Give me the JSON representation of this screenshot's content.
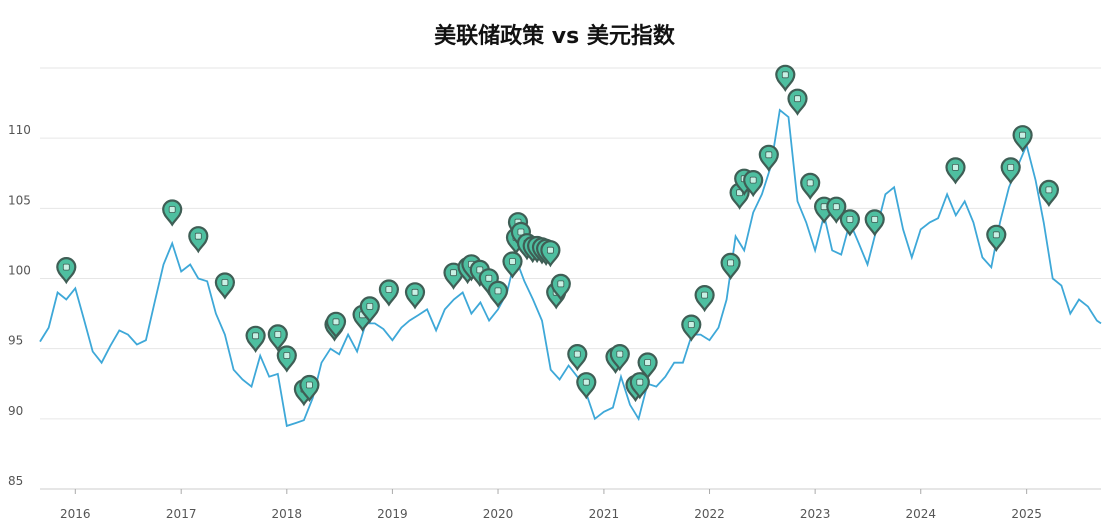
{
  "chart_data": {
    "type": "line",
    "title": "美联储政策 vs 美元指数",
    "xlabel": "",
    "ylabel": "",
    "x_range": [
      "2015-09-01",
      "2025-09-15"
    ],
    "ylim": [
      85,
      115
    ],
    "y_ticks": [
      "85",
      "90",
      "95",
      "100",
      "105",
      "110"
    ],
    "x_ticks": [
      "2016",
      "2017",
      "2018",
      "2019",
      "2020",
      "2021",
      "2022",
      "2023",
      "2024",
      "2025"
    ],
    "grid": "horizontal",
    "colors": {
      "line": "#3ea8d8",
      "marker_fill": "#4ebfa0",
      "marker_stroke": "#3f5e55",
      "marker_dot": "#c8f0e4"
    },
    "series": [
      {
        "values": [
          [
            "2015-09-01",
            95.5
          ],
          [
            "2015-10-01",
            96.5
          ],
          [
            "2015-11-01",
            99.0
          ],
          [
            "2015-12-01",
            98.5
          ],
          [
            "2016-01-01",
            99.3
          ],
          [
            "2016-02-01",
            97.0
          ],
          [
            "2016-03-01",
            94.8
          ],
          [
            "2016-04-01",
            94.0
          ],
          [
            "2016-05-01",
            95.2
          ],
          [
            "2016-06-01",
            96.3
          ],
          [
            "2016-07-01",
            96.0
          ],
          [
            "2016-08-01",
            95.3
          ],
          [
            "2016-09-01",
            95.6
          ],
          [
            "2016-10-01",
            98.3
          ],
          [
            "2016-11-01",
            101.0
          ],
          [
            "2016-12-01",
            102.5
          ],
          [
            "2017-01-01",
            100.5
          ],
          [
            "2017-02-01",
            101.0
          ],
          [
            "2017-03-01",
            100.0
          ],
          [
            "2017-04-01",
            99.8
          ],
          [
            "2017-05-01",
            97.5
          ],
          [
            "2017-06-01",
            96.0
          ],
          [
            "2017-07-01",
            93.5
          ],
          [
            "2017-08-01",
            92.8
          ],
          [
            "2017-09-01",
            92.3
          ],
          [
            "2017-10-01",
            94.5
          ],
          [
            "2017-11-01",
            93.0
          ],
          [
            "2017-12-01",
            93.2
          ],
          [
            "2018-01-01",
            89.5
          ],
          [
            "2018-02-01",
            89.7
          ],
          [
            "2018-03-01",
            89.9
          ],
          [
            "2018-04-01",
            91.5
          ],
          [
            "2018-05-01",
            94.0
          ],
          [
            "2018-06-01",
            95.0
          ],
          [
            "2018-07-01",
            94.6
          ],
          [
            "2018-08-01",
            96.0
          ],
          [
            "2018-09-01",
            94.8
          ],
          [
            "2018-10-01",
            96.8
          ],
          [
            "2018-11-01",
            96.8
          ],
          [
            "2018-12-01",
            96.4
          ],
          [
            "2019-01-01",
            95.6
          ],
          [
            "2019-02-01",
            96.5
          ],
          [
            "2019-03-01",
            97.0
          ],
          [
            "2019-04-01",
            97.4
          ],
          [
            "2019-05-01",
            97.8
          ],
          [
            "2019-06-01",
            96.3
          ],
          [
            "2019-07-01",
            97.8
          ],
          [
            "2019-08-01",
            98.5
          ],
          [
            "2019-09-01",
            99.0
          ],
          [
            "2019-10-01",
            97.5
          ],
          [
            "2019-11-01",
            98.3
          ],
          [
            "2019-12-01",
            97.0
          ],
          [
            "2020-01-01",
            97.8
          ],
          [
            "2020-02-01",
            99.0
          ],
          [
            "2020-03-01",
            101.5
          ],
          [
            "2020-04-01",
            99.8
          ],
          [
            "2020-05-01",
            98.5
          ],
          [
            "2020-06-01",
            97.0
          ],
          [
            "2020-07-01",
            93.5
          ],
          [
            "2020-08-01",
            92.8
          ],
          [
            "2020-09-01",
            93.8
          ],
          [
            "2020-10-01",
            93.0
          ],
          [
            "2020-11-01",
            91.8
          ],
          [
            "2020-12-01",
            90.0
          ],
          [
            "2021-01-01",
            90.5
          ],
          [
            "2021-02-01",
            90.8
          ],
          [
            "2021-03-01",
            93.0
          ],
          [
            "2021-04-01",
            91.0
          ],
          [
            "2021-05-01",
            90.0
          ],
          [
            "2021-06-01",
            92.5
          ],
          [
            "2021-07-01",
            92.3
          ],
          [
            "2021-08-01",
            93.0
          ],
          [
            "2021-09-01",
            94.0
          ],
          [
            "2021-10-01",
            94.0
          ],
          [
            "2021-11-01",
            96.0
          ],
          [
            "2021-12-01",
            96.0
          ],
          [
            "2022-01-01",
            95.6
          ],
          [
            "2022-02-01",
            96.5
          ],
          [
            "2022-03-01",
            98.5
          ],
          [
            "2022-04-01",
            103.0
          ],
          [
            "2022-05-01",
            102.0
          ],
          [
            "2022-06-01",
            104.7
          ],
          [
            "2022-07-01",
            106.0
          ],
          [
            "2022-08-01",
            108.0
          ],
          [
            "2022-09-01",
            112.0
          ],
          [
            "2022-10-01",
            111.5
          ],
          [
            "2022-11-01",
            105.5
          ],
          [
            "2022-12-01",
            104.0
          ],
          [
            "2023-01-01",
            102.0
          ],
          [
            "2023-02-01",
            104.5
          ],
          [
            "2023-03-01",
            102.0
          ],
          [
            "2023-04-01",
            101.7
          ],
          [
            "2023-05-01",
            104.0
          ],
          [
            "2023-06-01",
            102.5
          ],
          [
            "2023-07-01",
            101.0
          ],
          [
            "2023-08-01",
            103.5
          ],
          [
            "2023-09-01",
            106.0
          ],
          [
            "2023-10-01",
            106.5
          ],
          [
            "2023-11-01",
            103.5
          ],
          [
            "2023-12-01",
            101.5
          ],
          [
            "2024-01-01",
            103.5
          ],
          [
            "2024-02-01",
            104.0
          ],
          [
            "2024-03-01",
            104.3
          ],
          [
            "2024-04-01",
            106.0
          ],
          [
            "2024-05-01",
            104.5
          ],
          [
            "2024-06-01",
            105.5
          ],
          [
            "2024-07-01",
            104.0
          ],
          [
            "2024-08-01",
            101.5
          ],
          [
            "2024-09-01",
            100.8
          ],
          [
            "2024-10-01",
            104.0
          ],
          [
            "2024-11-01",
            106.5
          ],
          [
            "2024-12-01",
            108.0
          ],
          [
            "2025-01-01",
            109.5
          ],
          [
            "2025-02-01",
            107.0
          ],
          [
            "2025-03-01",
            104.0
          ],
          [
            "2025-04-01",
            100.0
          ],
          [
            "2025-05-01",
            99.5
          ],
          [
            "2025-06-01",
            97.5
          ],
          [
            "2025-07-01",
            98.5
          ],
          [
            "2025-08-01",
            98.0
          ],
          [
            "2025-09-01",
            97.0
          ],
          [
            "2025-09-15",
            96.8
          ]
        ]
      }
    ],
    "events": [
      [
        "2015-12-01",
        100.6
      ],
      [
        "2016-12-01",
        104.7
      ],
      [
        "2017-03-01",
        102.8
      ],
      [
        "2017-06-01",
        99.5
      ],
      [
        "2017-09-15",
        95.7
      ],
      [
        "2017-12-01",
        95.8
      ],
      [
        "2018-01-01",
        94.3
      ],
      [
        "2018-03-01",
        91.9
      ],
      [
        "2018-03-20",
        92.2
      ],
      [
        "2018-06-15",
        96.5
      ],
      [
        "2018-06-20",
        96.7
      ],
      [
        "2018-09-20",
        97.2
      ],
      [
        "2018-10-15",
        97.8
      ],
      [
        "2018-12-20",
        99.0
      ],
      [
        "2019-03-20",
        98.8
      ],
      [
        "2019-07-31",
        100.2
      ],
      [
        "2019-09-18",
        100.6
      ],
      [
        "2019-10-01",
        100.8
      ],
      [
        "2019-10-30",
        100.4
      ],
      [
        "2019-11-30",
        99.8
      ],
      [
        "2020-01-01",
        98.9
      ],
      [
        "2020-02-20",
        101.0
      ],
      [
        "2020-03-03",
        102.7
      ],
      [
        "2020-03-10",
        103.8
      ],
      [
        "2020-03-20",
        103.1
      ],
      [
        "2020-04-10",
        102.3
      ],
      [
        "2020-04-30",
        102.1
      ],
      [
        "2020-05-15",
        102.1
      ],
      [
        "2020-06-01",
        102.0
      ],
      [
        "2020-06-15",
        101.9
      ],
      [
        "2020-06-30",
        101.8
      ],
      [
        "2020-07-20",
        98.8
      ],
      [
        "2020-08-05",
        99.4
      ],
      [
        "2020-10-01",
        94.4
      ],
      [
        "2020-11-01",
        92.4
      ],
      [
        "2021-02-10",
        94.2
      ],
      [
        "2021-02-25",
        94.4
      ],
      [
        "2021-04-20",
        92.2
      ],
      [
        "2021-05-05",
        92.4
      ],
      [
        "2021-06-01",
        93.8
      ],
      [
        "2021-10-30",
        96.5
      ],
      [
        "2021-12-15",
        98.6
      ],
      [
        "2022-03-15",
        100.9
      ],
      [
        "2022-04-15",
        105.9
      ],
      [
        "2022-05-01",
        106.9
      ],
      [
        "2022-06-01",
        106.8
      ],
      [
        "2022-07-25",
        108.6
      ],
      [
        "2022-09-20",
        114.3
      ],
      [
        "2022-11-01",
        112.6
      ],
      [
        "2022-12-15",
        106.6
      ],
      [
        "2023-02-01",
        104.9
      ],
      [
        "2023-03-15",
        104.9
      ],
      [
        "2023-05-01",
        104.0
      ],
      [
        "2023-07-26",
        104.0
      ],
      [
        "2024-04-30",
        107.7
      ],
      [
        "2024-09-18",
        102.9
      ],
      [
        "2024-11-07",
        107.7
      ],
      [
        "2024-12-18",
        110.0
      ],
      [
        "2025-03-19",
        106.1
      ]
    ]
  }
}
